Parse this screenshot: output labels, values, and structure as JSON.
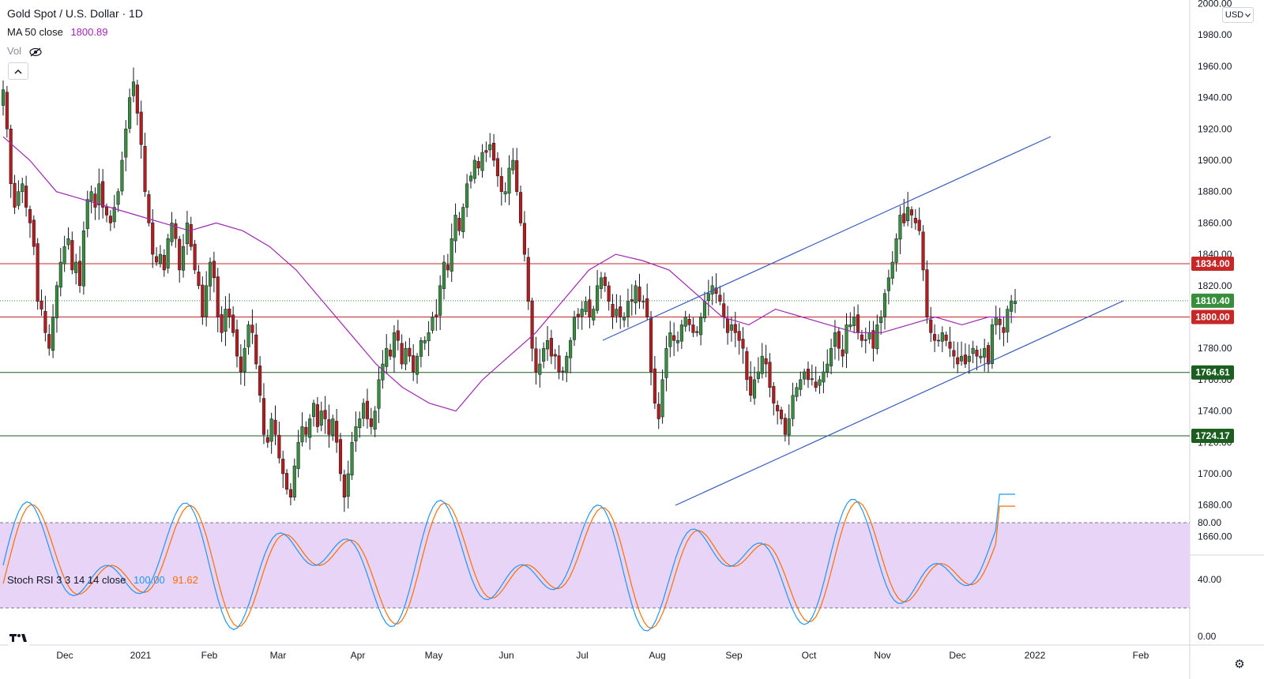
{
  "header": {
    "title": "Gold Spot / U.S. Dollar · 1D",
    "ma_label": "MA 50 close",
    "ma_value": "1800.89",
    "vol_label": "Vol",
    "currency": "USD",
    "collapse_icon": "chevron-up-icon",
    "vol_icon": "eye-off-icon"
  },
  "stoch": {
    "label": "Stoch RSI 3 3 14 14 close",
    "k_value": "100.00",
    "d_value": "91.62",
    "upper_band": 80,
    "lower_band": 20
  },
  "colors": {
    "up_candle": "#388e3c",
    "down_candle": "#b71c1c",
    "ma_line": "#9c27b0",
    "red_level": "#c62828",
    "green_level": "#1b5e20",
    "trend_line": "#3a5bbf",
    "k_line": "#2196f3",
    "d_line": "#ff6d00",
    "band_fill": "#e7d4f7"
  },
  "chart_data": {
    "type": "candlestick",
    "title": "Gold Spot / U.S. Dollar · 1D",
    "price_ticks": [
      2000,
      1980,
      1960,
      1940,
      1920,
      1900,
      1880,
      1860,
      1840,
      1820,
      1800,
      1780,
      1760,
      1740,
      1720,
      1700,
      1680,
      1660
    ],
    "price_tick_labels": [
      "2000.00",
      "1980.00",
      "1960.00",
      "1940.00",
      "1920.00",
      "1900.00",
      "1880.00",
      "1860.00",
      "1840.00",
      "1820.00",
      "1800.00",
      "1780.00",
      "1760.00",
      "1740.00",
      "1720.00",
      "1700.00",
      "1680.00",
      "1660.00"
    ],
    "stoch_ticks": [
      0,
      40,
      80
    ],
    "stoch_tick_labels": [
      "0.00",
      "40.00",
      "80.00"
    ],
    "time_labels": [
      "Dec",
      "2021",
      "Feb",
      "Mar",
      "Apr",
      "May",
      "Jun",
      "Jul",
      "Aug",
      "Sep",
      "Oct",
      "Nov",
      "Dec",
      "2022",
      "Feb"
    ],
    "price_labels": [
      {
        "value": 1834.0,
        "text": "1834.00",
        "color": "#c62828"
      },
      {
        "value": 1810.4,
        "text": "1810.40",
        "color": "#388e3c"
      },
      {
        "value": 1800.0,
        "text": "1800.00",
        "color": "#c62828"
      },
      {
        "value": 1764.61,
        "text": "1764.61",
        "color": "#1b5e20"
      },
      {
        "value": 1724.17,
        "text": "1724.17",
        "color": "#1b5e20"
      }
    ],
    "close_series": [
      1945,
      1920,
      1885,
      1870,
      1880,
      1885,
      1870,
      1860,
      1845,
      1810,
      1805,
      1790,
      1780,
      1800,
      1820,
      1835,
      1845,
      1850,
      1830,
      1835,
      1820,
      1855,
      1875,
      1880,
      1870,
      1885,
      1870,
      1865,
      1860,
      1870,
      1880,
      1900,
      1920,
      1940,
      1950,
      1930,
      1910,
      1880,
      1860,
      1840,
      1835,
      1840,
      1830,
      1850,
      1860,
      1850,
      1830,
      1845,
      1860,
      1845,
      1830,
      1820,
      1800,
      1820,
      1835,
      1825,
      1800,
      1790,
      1805,
      1800,
      1790,
      1775,
      1765,
      1780,
      1795,
      1790,
      1770,
      1750,
      1725,
      1720,
      1735,
      1725,
      1710,
      1700,
      1690,
      1685,
      1705,
      1720,
      1730,
      1725,
      1735,
      1745,
      1730,
      1740,
      1735,
      1725,
      1735,
      1720,
      1700,
      1685,
      1700,
      1720,
      1730,
      1735,
      1745,
      1735,
      1730,
      1740,
      1760,
      1770,
      1780,
      1775,
      1790,
      1785,
      1770,
      1780,
      1775,
      1765,
      1775,
      1785,
      1785,
      1790,
      1800,
      1800,
      1820,
      1835,
      1830,
      1850,
      1865,
      1855,
      1870,
      1885,
      1890,
      1900,
      1895,
      1905,
      1905,
      1910,
      1900,
      1890,
      1880,
      1880,
      1895,
      1900,
      1880,
      1860,
      1840,
      1810,
      1780,
      1765,
      1770,
      1780,
      1785,
      1775,
      1775,
      1765,
      1765,
      1775,
      1785,
      1800,
      1800,
      1805,
      1810,
      1800,
      1805,
      1820,
      1825,
      1820,
      1810,
      1800,
      1805,
      1800,
      1800,
      1810,
      1810,
      1820,
      1810,
      1810,
      1800,
      1765,
      1745,
      1735,
      1760,
      1780,
      1790,
      1785,
      1785,
      1795,
      1800,
      1795,
      1790,
      1790,
      1800,
      1810,
      1815,
      1820,
      1815,
      1810,
      1800,
      1790,
      1795,
      1790,
      1785,
      1780,
      1760,
      1750,
      1760,
      1765,
      1775,
      1770,
      1755,
      1745,
      1740,
      1735,
      1725,
      1735,
      1750,
      1755,
      1760,
      1765,
      1760,
      1760,
      1755,
      1760,
      1765,
      1770,
      1780,
      1790,
      1780,
      1775,
      1795,
      1795,
      1800,
      1790,
      1785,
      1785,
      1790,
      1780,
      1795,
      1800,
      1815,
      1825,
      1835,
      1850,
      1865,
      1860,
      1870,
      1865,
      1860,
      1855,
      1830,
      1800,
      1790,
      1785,
      1785,
      1790,
      1785,
      1780,
      1775,
      1770,
      1775,
      1770,
      1775,
      1780,
      1775,
      1775,
      1780,
      1770,
      1795,
      1800,
      1795,
      1790,
      1805,
      1810,
      1810
    ],
    "ma50_series_sampled": [
      1915,
      1900,
      1880,
      1875,
      1870,
      1865,
      1860,
      1855,
      1860,
      1855,
      1845,
      1830,
      1810,
      1790,
      1770,
      1755,
      1745,
      1740,
      1760,
      1775,
      1790,
      1810,
      1830,
      1840,
      1836,
      1830,
      1815,
      1800,
      1795,
      1805,
      1800,
      1795,
      1790,
      1790,
      1795,
      1800,
      1795,
      1800,
      1800
    ],
    "trendlines": [
      {
        "name": "",
        "from": [
          855,
          1680
        ],
        "to": [
          1330,
          1915
        ],
        "unit": "x_pixel,price"
      }
    ]
  }
}
